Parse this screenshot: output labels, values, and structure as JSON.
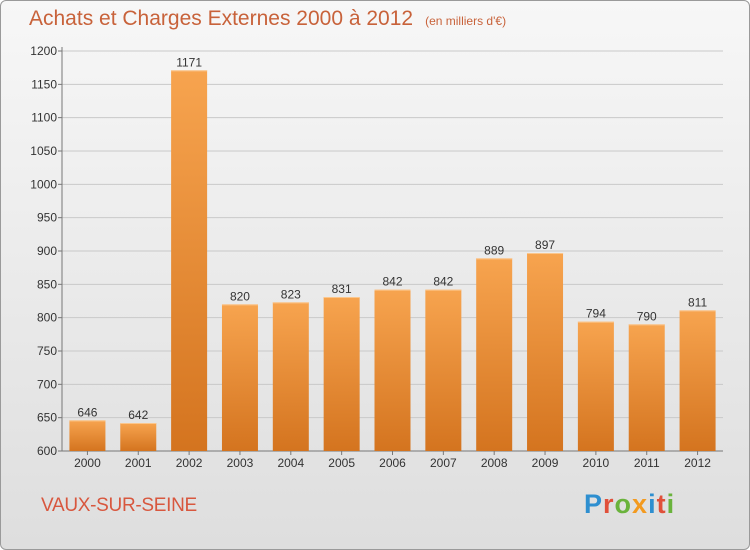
{
  "header": {
    "title": "Achats et Charges Externes 2000 à 2012",
    "unit": "(en milliers d'€)"
  },
  "footer": {
    "commune": "VAUX-SUR-SEINE",
    "brand": "Proxiti"
  },
  "colors": {
    "bar_light": "#f7a44f",
    "bar_dark": "#d4741f",
    "title": "#c8623a",
    "commune": "#d8573e",
    "logo_letters": [
      "#2e8fd0",
      "#e0503a",
      "#6ab33c",
      "#f39a1f",
      "#2e8fd0",
      "#e0503a",
      "#6ab33c"
    ]
  },
  "chart_data": {
    "type": "bar",
    "categories": [
      "2000",
      "2001",
      "2002",
      "2003",
      "2004",
      "2005",
      "2006",
      "2007",
      "2008",
      "2009",
      "2010",
      "2011",
      "2012"
    ],
    "values": [
      646,
      642,
      1171,
      820,
      823,
      831,
      842,
      842,
      889,
      897,
      794,
      790,
      811
    ],
    "ylim": [
      600,
      1200
    ],
    "yticks": [
      600,
      650,
      700,
      750,
      800,
      850,
      900,
      950,
      1000,
      1050,
      1100,
      1150,
      1200
    ],
    "grid": true,
    "data_labels": true
  }
}
